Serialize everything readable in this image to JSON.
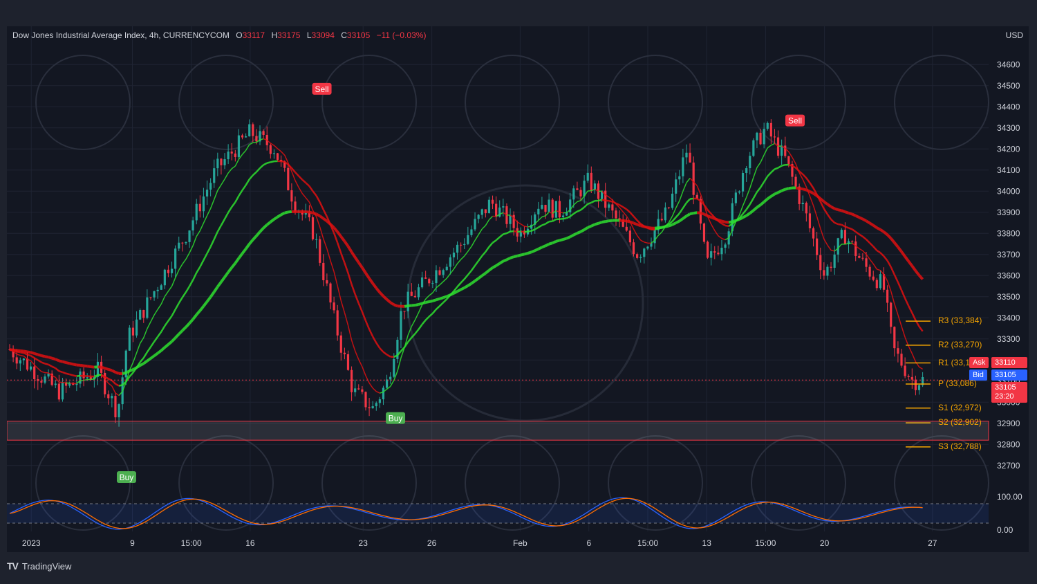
{
  "header": {
    "symbol": "Dow Jones Industrial Average Index, 4h, CURRENCYCOM",
    "o_label": "O",
    "o": "33117",
    "h_label": "H",
    "h": "33175",
    "l_label": "L",
    "l": "33094",
    "c_label": "C",
    "c": "33105",
    "change": "−11 (−0.03%)",
    "currency": "USD"
  },
  "brand": {
    "logo": "TV",
    "name": "TradingView"
  },
  "price_tags": {
    "ask_label": "Ask",
    "ask": "33110",
    "bid_label": "Bid",
    "bid": "33105",
    "last": "33105",
    "countdown": "23:20"
  },
  "pivots": [
    {
      "label": "R3 (33,384)",
      "value": 33384
    },
    {
      "label": "R2 (33,270)",
      "value": 33270
    },
    {
      "label": "R1 (33,1",
      "value": 33186
    },
    {
      "label": "P (33,086)",
      "value": 33086
    },
    {
      "label": "S1 (32,972)",
      "value": 32972
    },
    {
      "label": "S2 (32,902)",
      "value": 32902
    },
    {
      "label": "S3 (32,788)",
      "value": 32788
    }
  ],
  "signals": [
    {
      "label": "Sell",
      "type": "sell",
      "x": 0.318,
      "price": 34480
    },
    {
      "label": "Sell",
      "type": "sell",
      "x": 0.8,
      "price": 34330
    },
    {
      "label": "Buy",
      "type": "buy",
      "x": 0.393,
      "price": 32920
    },
    {
      "label": "Buy",
      "type": "buy",
      "x": 0.119,
      "price": 32640
    }
  ],
  "colors": {
    "up": "#26a69a",
    "down": "#f23645",
    "ema_green": "#2fe02f",
    "ema_red": "#e01010",
    "pivot": "#f7a600",
    "ask": "#f23645",
    "bid": "#2962ff"
  },
  "chart_data": {
    "type": "candlestick",
    "ylim": [
      32650,
      34650
    ],
    "yticks": [
      34600,
      34500,
      34400,
      34300,
      34200,
      34100,
      34000,
      33900,
      33800,
      33700,
      33600,
      33500,
      33400,
      33300,
      33200,
      33100,
      33000,
      32900,
      32800,
      32700
    ],
    "xticks": [
      "2023",
      "9",
      "15:00",
      "16",
      "23",
      "26",
      "Feb",
      "6",
      "15:00",
      "13",
      "15:00",
      "20",
      "27"
    ],
    "close_anchors": [
      [
        0,
        33250
      ],
      [
        0.05,
        33050
      ],
      [
        0.09,
        33150
      ],
      [
        0.11,
        32950
      ],
      [
        0.12,
        33300
      ],
      [
        0.15,
        33550
      ],
      [
        0.18,
        33800
      ],
      [
        0.21,
        34100
      ],
      [
        0.245,
        34280
      ],
      [
        0.27,
        34200
      ],
      [
        0.29,
        33950
      ],
      [
        0.31,
        33800
      ],
      [
        0.33,
        33400
      ],
      [
        0.35,
        33050
      ],
      [
        0.37,
        32970
      ],
      [
        0.385,
        33100
      ],
      [
        0.4,
        33450
      ],
      [
        0.43,
        33600
      ],
      [
        0.46,
        33750
      ],
      [
        0.49,
        33950
      ],
      [
        0.52,
        33800
      ],
      [
        0.54,
        33950
      ],
      [
        0.56,
        33900
      ],
      [
        0.59,
        34050
      ],
      [
        0.62,
        33850
      ],
      [
        0.64,
        33700
      ],
      [
        0.67,
        33900
      ],
      [
        0.69,
        34200
      ],
      [
        0.71,
        33650
      ],
      [
        0.73,
        33800
      ],
      [
        0.75,
        34150
      ],
      [
        0.77,
        34300
      ],
      [
        0.79,
        34150
      ],
      [
        0.81,
        33900
      ],
      [
        0.83,
        33600
      ],
      [
        0.85,
        33800
      ],
      [
        0.87,
        33650
      ],
      [
        0.89,
        33550
      ],
      [
        0.9,
        33250
      ],
      [
        0.92,
        33100
      ],
      [
        0.93,
        33105
      ]
    ],
    "stoch": {
      "ylim": [
        0,
        100
      ],
      "labels": [
        "100.00",
        "0.00"
      ],
      "upper": 80,
      "lower": 20
    }
  }
}
